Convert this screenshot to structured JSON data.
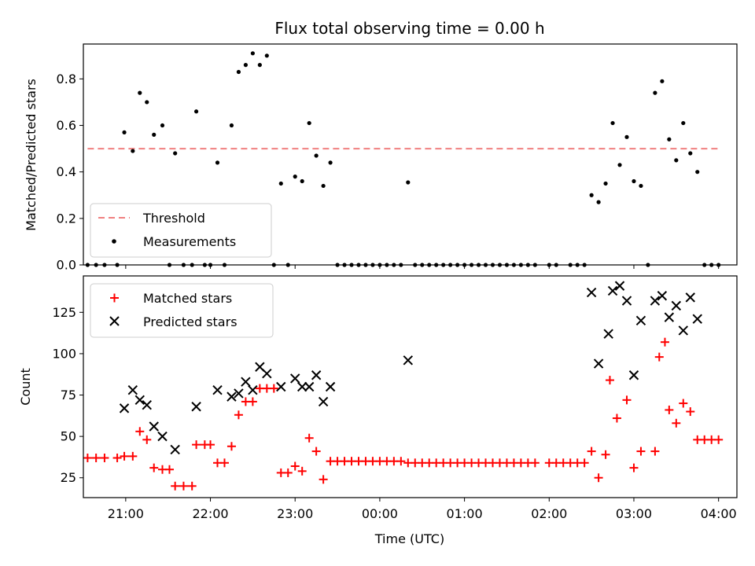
{
  "chart_data": [
    {
      "type": "scatter",
      "title": "Flux total observing time = 0.00 h",
      "xlabel": "",
      "ylabel": "Matched/Predicted stars",
      "ylim": [
        0.0,
        0.95
      ],
      "yticks": [
        "0.0",
        "0.2",
        "0.4",
        "0.6",
        "0.8"
      ],
      "xlim": [
        "20:30",
        "04:13"
      ],
      "legend": {
        "placement": "lower-left",
        "entries": [
          "Threshold",
          "Measurements"
        ]
      },
      "series": [
        {
          "name": "Threshold",
          "style": "dashed-line",
          "color": "#f08080",
          "points": [
            [
              "20:33",
              0.5
            ],
            [
              "04:00",
              0.5
            ]
          ]
        },
        {
          "name": "Measurements",
          "style": "dot",
          "color": "#000000",
          "points": [
            [
              "20:33",
              0.0
            ],
            [
              "20:39",
              0.0
            ],
            [
              "20:45",
              0.0
            ],
            [
              "20:54",
              0.0
            ],
            [
              "20:59",
              0.57
            ],
            [
              "21:05",
              0.49
            ],
            [
              "21:10",
              0.74
            ],
            [
              "21:15",
              0.7
            ],
            [
              "21:20",
              0.56
            ],
            [
              "21:26",
              0.6
            ],
            [
              "21:31",
              0.0
            ],
            [
              "21:35",
              0.48
            ],
            [
              "21:41",
              0.0
            ],
            [
              "21:47",
              0.0
            ],
            [
              "21:50",
              0.66
            ],
            [
              "21:56",
              0.0
            ],
            [
              "22:00",
              0.0
            ],
            [
              "22:05",
              0.44
            ],
            [
              "22:10",
              0.0
            ],
            [
              "22:15",
              0.6
            ],
            [
              "22:20",
              0.83
            ],
            [
              "22:25",
              0.86
            ],
            [
              "22:30",
              0.91
            ],
            [
              "22:35",
              0.86
            ],
            [
              "22:40",
              0.9
            ],
            [
              "22:45",
              0.0
            ],
            [
              "22:50",
              0.35
            ],
            [
              "22:55",
              0.0
            ],
            [
              "23:00",
              0.38
            ],
            [
              "23:05",
              0.36
            ],
            [
              "23:10",
              0.61
            ],
            [
              "23:15",
              0.47
            ],
            [
              "23:20",
              0.34
            ],
            [
              "23:25",
              0.44
            ],
            [
              "23:30",
              0.0
            ],
            [
              "23:35",
              0.0
            ],
            [
              "23:40",
              0.0
            ],
            [
              "23:45",
              0.0
            ],
            [
              "23:50",
              0.0
            ],
            [
              "23:55",
              0.0
            ],
            [
              "00:00",
              0.0
            ],
            [
              "00:05",
              0.0
            ],
            [
              "00:10",
              0.0
            ],
            [
              "00:15",
              0.0
            ],
            [
              "00:20",
              0.355
            ],
            [
              "00:25",
              0.0
            ],
            [
              "00:30",
              0.0
            ],
            [
              "00:35",
              0.0
            ],
            [
              "00:40",
              0.0
            ],
            [
              "00:45",
              0.0
            ],
            [
              "00:50",
              0.0
            ],
            [
              "00:55",
              0.0
            ],
            [
              "01:00",
              0.0
            ],
            [
              "01:05",
              0.0
            ],
            [
              "01:10",
              0.0
            ],
            [
              "01:15",
              0.0
            ],
            [
              "01:20",
              0.0
            ],
            [
              "01:25",
              0.0
            ],
            [
              "01:30",
              0.0
            ],
            [
              "01:35",
              0.0
            ],
            [
              "01:40",
              0.0
            ],
            [
              "01:45",
              0.0
            ],
            [
              "01:50",
              0.0
            ],
            [
              "02:00",
              0.0
            ],
            [
              "02:05",
              0.0
            ],
            [
              "02:15",
              0.0
            ],
            [
              "02:20",
              0.0
            ],
            [
              "02:25",
              0.0
            ],
            [
              "02:30",
              0.3
            ],
            [
              "02:35",
              0.27
            ],
            [
              "02:40",
              0.35
            ],
            [
              "02:45",
              0.61
            ],
            [
              "02:50",
              0.43
            ],
            [
              "02:55",
              0.55
            ],
            [
              "03:00",
              0.36
            ],
            [
              "03:05",
              0.34
            ],
            [
              "03:10",
              0.0
            ],
            [
              "03:15",
              0.74
            ],
            [
              "03:20",
              0.79
            ],
            [
              "03:25",
              0.54
            ],
            [
              "03:30",
              0.45
            ],
            [
              "03:35",
              0.61
            ],
            [
              "03:40",
              0.48
            ],
            [
              "03:45",
              0.4
            ],
            [
              "03:50",
              0.0
            ],
            [
              "03:55",
              0.0
            ],
            [
              "04:00",
              0.0
            ]
          ]
        }
      ]
    },
    {
      "type": "scatter",
      "title": "",
      "xlabel": "Time (UTC)",
      "ylabel": "Count",
      "ylim": [
        13,
        147
      ],
      "yticks": [
        "25",
        "50",
        "75",
        "100",
        "125"
      ],
      "xlim": [
        "20:30",
        "04:13"
      ],
      "xticks": [
        "21:00",
        "22:00",
        "23:00",
        "00:00",
        "01:00",
        "02:00",
        "03:00",
        "04:00"
      ],
      "legend": {
        "placement": "upper-left",
        "entries": [
          "Matched stars",
          "Predicted stars"
        ]
      },
      "series": [
        {
          "name": "Matched stars",
          "style": "plus",
          "color": "#ff0000",
          "points": [
            [
              "20:33",
              37
            ],
            [
              "20:39",
              37
            ],
            [
              "20:45",
              37
            ],
            [
              "20:54",
              37
            ],
            [
              "20:59",
              38
            ],
            [
              "21:05",
              38
            ],
            [
              "21:10",
              53
            ],
            [
              "21:15",
              48
            ],
            [
              "21:20",
              31
            ],
            [
              "21:26",
              30
            ],
            [
              "21:31",
              30
            ],
            [
              "21:35",
              20
            ],
            [
              "21:41",
              20
            ],
            [
              "21:47",
              20
            ],
            [
              "21:50",
              45
            ],
            [
              "21:56",
              45
            ],
            [
              "22:00",
              45
            ],
            [
              "22:05",
              34
            ],
            [
              "22:10",
              34
            ],
            [
              "22:15",
              44
            ],
            [
              "22:20",
              63
            ],
            [
              "22:25",
              71
            ],
            [
              "22:30",
              71
            ],
            [
              "22:35",
              79
            ],
            [
              "22:40",
              79
            ],
            [
              "22:45",
              79
            ],
            [
              "22:50",
              28
            ],
            [
              "22:55",
              28
            ],
            [
              "23:00",
              32
            ],
            [
              "23:05",
              29
            ],
            [
              "23:10",
              49
            ],
            [
              "23:15",
              41
            ],
            [
              "23:20",
              24
            ],
            [
              "23:25",
              35
            ],
            [
              "23:30",
              35
            ],
            [
              "23:35",
              35
            ],
            [
              "23:40",
              35
            ],
            [
              "23:45",
              35
            ],
            [
              "23:50",
              35
            ],
            [
              "23:55",
              35
            ],
            [
              "00:00",
              35
            ],
            [
              "00:05",
              35
            ],
            [
              "00:10",
              35
            ],
            [
              "00:15",
              35
            ],
            [
              "00:20",
              34
            ],
            [
              "00:25",
              34
            ],
            [
              "00:30",
              34
            ],
            [
              "00:35",
              34
            ],
            [
              "00:40",
              34
            ],
            [
              "00:45",
              34
            ],
            [
              "00:50",
              34
            ],
            [
              "00:55",
              34
            ],
            [
              "01:00",
              34
            ],
            [
              "01:05",
              34
            ],
            [
              "01:10",
              34
            ],
            [
              "01:15",
              34
            ],
            [
              "01:20",
              34
            ],
            [
              "01:25",
              34
            ],
            [
              "01:30",
              34
            ],
            [
              "01:35",
              34
            ],
            [
              "01:40",
              34
            ],
            [
              "01:45",
              34
            ],
            [
              "01:50",
              34
            ],
            [
              "02:00",
              34
            ],
            [
              "02:05",
              34
            ],
            [
              "02:10",
              34
            ],
            [
              "02:15",
              34
            ],
            [
              "02:20",
              34
            ],
            [
              "02:25",
              34
            ],
            [
              "02:30",
              41
            ],
            [
              "02:35",
              25
            ],
            [
              "02:40",
              39
            ],
            [
              "02:43",
              84
            ],
            [
              "02:48",
              61
            ],
            [
              "02:55",
              72
            ],
            [
              "03:00",
              31
            ],
            [
              "03:05",
              41
            ],
            [
              "03:15",
              41
            ],
            [
              "03:18",
              98
            ],
            [
              "03:22",
              107
            ],
            [
              "03:25",
              66
            ],
            [
              "03:30",
              58
            ],
            [
              "03:35",
              70
            ],
            [
              "03:40",
              65
            ],
            [
              "03:45",
              48
            ],
            [
              "03:50",
              48
            ],
            [
              "03:55",
              48
            ],
            [
              "04:00",
              48
            ]
          ]
        },
        {
          "name": "Predicted stars",
          "style": "x",
          "color": "#000000",
          "points": [
            [
              "20:59",
              67
            ],
            [
              "21:05",
              78
            ],
            [
              "21:10",
              72
            ],
            [
              "21:15",
              69
            ],
            [
              "21:20",
              56
            ],
            [
              "21:26",
              50
            ],
            [
              "21:35",
              42
            ],
            [
              "21:50",
              68
            ],
            [
              "22:05",
              78
            ],
            [
              "22:15",
              74
            ],
            [
              "22:20",
              76
            ],
            [
              "22:25",
              83
            ],
            [
              "22:30",
              78
            ],
            [
              "22:35",
              92
            ],
            [
              "22:40",
              88
            ],
            [
              "22:50",
              80
            ],
            [
              "23:00",
              85
            ],
            [
              "23:05",
              80
            ],
            [
              "23:10",
              80
            ],
            [
              "23:15",
              87
            ],
            [
              "23:20",
              71
            ],
            [
              "23:25",
              80
            ],
            [
              "00:20",
              96
            ],
            [
              "02:30",
              137
            ],
            [
              "02:35",
              94
            ],
            [
              "02:42",
              112
            ],
            [
              "02:45",
              138
            ],
            [
              "02:50",
              141
            ],
            [
              "02:55",
              132
            ],
            [
              "03:00",
              87
            ],
            [
              "03:05",
              120
            ],
            [
              "03:15",
              132
            ],
            [
              "03:20",
              135
            ],
            [
              "03:25",
              122
            ],
            [
              "03:30",
              129
            ],
            [
              "03:35",
              114
            ],
            [
              "03:40",
              134
            ],
            [
              "03:45",
              121
            ]
          ]
        }
      ]
    }
  ]
}
